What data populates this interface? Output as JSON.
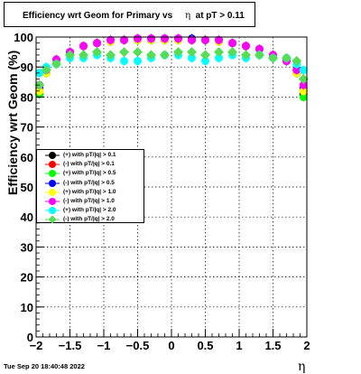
{
  "title": {
    "prefix": "Efficiency wrt Geom for Primary vs",
    "eta_symbol": "η",
    "suffix": "at pT > 0.11"
  },
  "timestamp": "Tue Sep 20 18:40:48 2022",
  "chart_data": {
    "type": "scatter",
    "title": "Efficiency wrt Geom for Primary vs η at pT > 0.11",
    "xlabel": "η",
    "ylabel": "Efficiency wrt Geom (%)",
    "xlim": [
      -2,
      2
    ],
    "ylim": [
      0,
      100
    ],
    "x_ticks": [
      -2,
      -1.5,
      -1,
      -0.5,
      0,
      0.5,
      1,
      1.5,
      2
    ],
    "x_tick_labels": [
      "−2",
      "−1.5",
      "−1",
      "−0.5",
      "0",
      "0.5",
      "1",
      "1.5",
      "2"
    ],
    "y_ticks": [
      0,
      10,
      20,
      30,
      40,
      50,
      60,
      70,
      80,
      90,
      100
    ],
    "y_tick_labels": [
      "0",
      "10",
      "20",
      "30",
      "40",
      "50",
      "60",
      "70",
      "80",
      "90",
      "100"
    ],
    "grid": true,
    "legend_position": "center-left",
    "x": [
      -1.95,
      -1.85,
      -1.7,
      -1.5,
      -1.3,
      -1.1,
      -0.9,
      -0.7,
      -0.5,
      -0.3,
      -0.1,
      0.1,
      0.3,
      0.5,
      0.7,
      0.9,
      1.1,
      1.3,
      1.5,
      1.7,
      1.85,
      1.95
    ],
    "series": [
      {
        "name": "(+) with pT/|q| > 0.1",
        "color": "#000000",
        "marker": "circle",
        "values": [
          81,
          88,
          92,
          95,
          97,
          98,
          98.5,
          99,
          99,
          99,
          99,
          99,
          99,
          99,
          98.5,
          98,
          97,
          96,
          94,
          92,
          88,
          81
        ]
      },
      {
        "name": "(-) with pT/|q| > 0.1",
        "color": "#ff0000",
        "marker": "circle",
        "values": [
          82,
          88,
          92,
          95,
          97,
          98,
          98.5,
          99,
          99,
          99,
          99,
          99,
          99,
          99,
          98.5,
          98,
          97,
          96,
          94,
          92,
          88,
          82
        ]
      },
      {
        "name": "(+) with pT/|q| > 0.5",
        "color": "#00ff00",
        "marker": "circle",
        "values": [
          81,
          88,
          92,
          95,
          97,
          98,
          98.5,
          99,
          99,
          99,
          99,
          99,
          99,
          99,
          98.5,
          98,
          97,
          96,
          94,
          92,
          88,
          80
        ]
      },
      {
        "name": "(-) with pT/|q| > 0.5",
        "color": "#0000ff",
        "marker": "circle",
        "values": [
          83,
          89,
          92.5,
          95,
          97,
          98,
          99,
          99,
          99.5,
          99.5,
          99.5,
          99.5,
          99.5,
          99,
          99,
          98,
          97,
          96,
          94,
          92,
          89,
          83
        ]
      },
      {
        "name": "(+) with pT/|q| > 1.0",
        "color": "#ffff00",
        "marker": "circle",
        "values": [
          82,
          88,
          92,
          95,
          97,
          98,
          98.5,
          99,
          99,
          99,
          99,
          99,
          99,
          99,
          98.5,
          98,
          97,
          96,
          94,
          92,
          88,
          82
        ]
      },
      {
        "name": "(-) with pT/|q| > 1.0",
        "color": "#ff00ff",
        "marker": "circle",
        "values": [
          84,
          89,
          92.5,
          95,
          97,
          98,
          99,
          99,
          99.5,
          99.5,
          99.5,
          99.5,
          99,
          99,
          99,
          98,
          97,
          96,
          94,
          92,
          89,
          84
        ]
      },
      {
        "name": "(+) with pT/|q| > 2.0",
        "color": "#00ffff",
        "marker": "circle",
        "values": [
          88,
          90,
          91,
          93,
          93,
          94,
          93,
          92,
          92,
          93,
          94,
          94,
          93,
          92,
          93,
          94,
          93,
          94,
          93,
          93,
          91,
          89
        ]
      },
      {
        "name": "(-) with pT/|q| > 2.0",
        "color": "#55dd55",
        "marker": "diamond",
        "values": [
          84,
          89,
          91,
          94,
          94,
          95,
          94,
          95,
          95,
          94,
          94,
          95,
          95,
          94,
          95,
          95,
          94,
          94,
          93,
          93,
          92,
          86
        ]
      }
    ]
  }
}
